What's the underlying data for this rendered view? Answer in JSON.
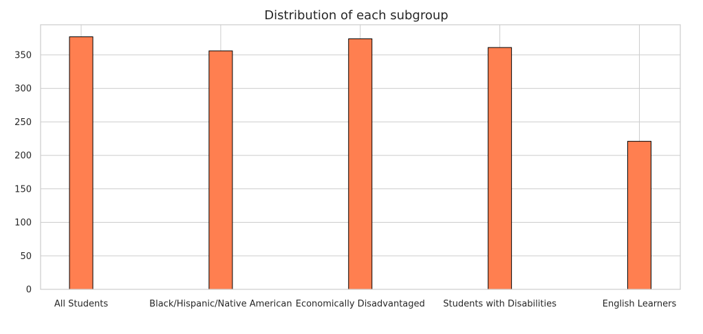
{
  "chart_data": {
    "type": "bar",
    "title": "Distribution of each subgroup",
    "xlabel": "",
    "ylabel": "",
    "categories": [
      "All Students",
      "Black/Hispanic/Native American",
      "Economically Disadvantaged",
      "Students with Disabilities",
      "English Learners"
    ],
    "values": [
      377,
      356,
      374,
      361,
      221
    ],
    "ylim": [
      0,
      395
    ],
    "yticks": [
      0,
      50,
      100,
      150,
      200,
      250,
      300,
      350
    ],
    "grid": true,
    "legend": "none",
    "colors": {
      "bar_fill": "#ff7f50",
      "bar_edge": "#000000",
      "grid": "#cccccc",
      "text": "#262626"
    }
  }
}
